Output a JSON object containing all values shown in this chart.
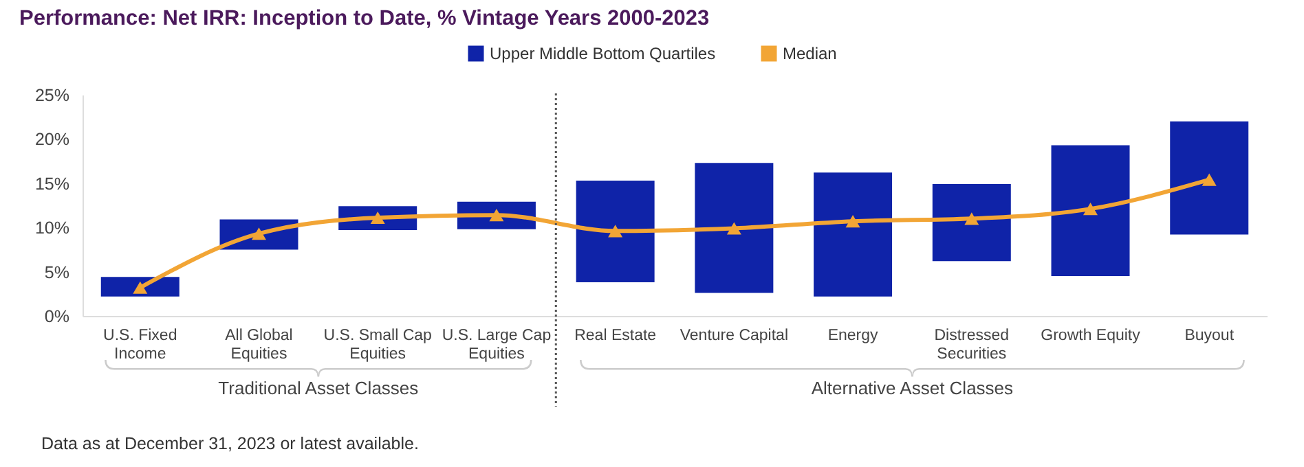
{
  "chart_data": {
    "type": "bar",
    "title": "Performance: Net IRR: Inception to Date, % Vintage Years 2000-2023",
    "categories": [
      "U.S. Fixed Income",
      "All Global Equities",
      "U.S. Small Cap Equities",
      "U.S. Large Cap Equities",
      "Real Estate",
      "Venture Capital",
      "Energy",
      "Distressed Securities",
      "Growth Equity",
      "Buyout"
    ],
    "series": [
      {
        "name": "Upper Middle Bottom Quartiles",
        "base": [
          2.2,
          7.5,
          9.7,
          9.8,
          3.8,
          2.6,
          2.2,
          6.2,
          4.5,
          9.2
        ],
        "color": "#0f23a8",
        "values": [
          2.2,
          3.4,
          2.7,
          3.1,
          11.5,
          14.7,
          14.0,
          8.7,
          14.8,
          12.8
        ]
      },
      {
        "name": "Median",
        "type": "line",
        "color": "#f2a535",
        "marker": "triangle",
        "line_style": "solid",
        "values": [
          3.2,
          9.3,
          11.1,
          11.4,
          9.6,
          9.9,
          10.7,
          11.0,
          12.1,
          15.4
        ]
      }
    ],
    "ylim": [
      0,
      25
    ],
    "yticks": [
      {
        "value": 0,
        "label": "0%"
      },
      {
        "value": 5,
        "label": "5%"
      },
      {
        "value": 10,
        "label": "10%"
      },
      {
        "value": 15,
        "label": "15%"
      },
      {
        "value": 20,
        "label": "20%"
      },
      {
        "value": 25,
        "label": "25%"
      }
    ],
    "legend": "top",
    "annotations": [
      "Traditional Asset Classes",
      "Alternative Asset Classes",
      "Data as at December 31, 2023 or latest available."
    ]
  }
}
